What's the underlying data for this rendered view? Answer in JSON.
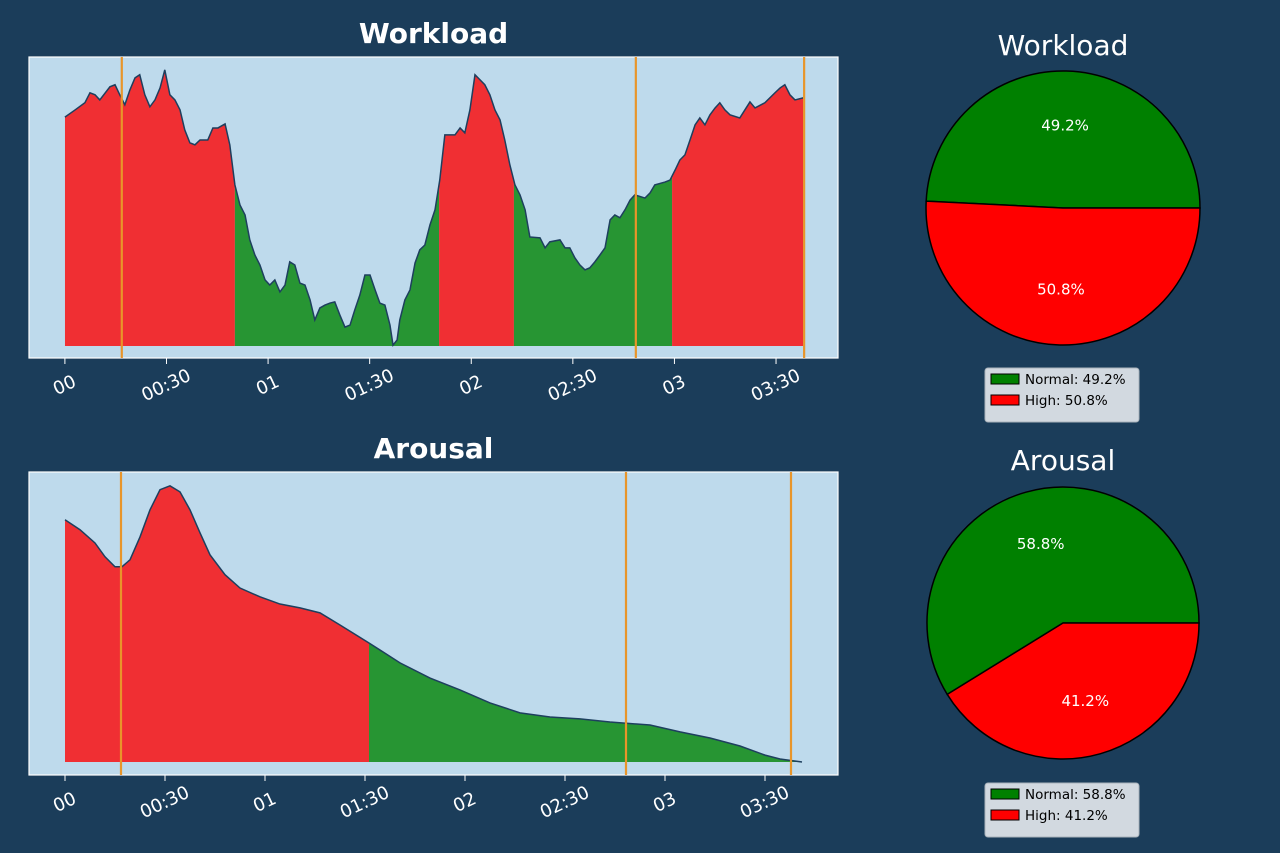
{
  "chart_data": [
    {
      "type": "area",
      "title": "Workload",
      "x": [
        0,
        3.0,
        5.9,
        7.4,
        8.9,
        10.3,
        13.3,
        14.8,
        16.2,
        17.7,
        19.2,
        20.7,
        22.1,
        23.6,
        25.1,
        26.6,
        28.1,
        29.5,
        31.0,
        32.5,
        34.0,
        35.4,
        36.9,
        38.4,
        39.9,
        42.2,
        43.7,
        45.2,
        47.3,
        48.7,
        50.2,
        51.7,
        53.2,
        54.6,
        56.1,
        57.6,
        59.1,
        60.5,
        62.0,
        63.5,
        65.0,
        66.4,
        67.9,
        69.4,
        70.9,
        72.4,
        73.8,
        75.3,
        76.8,
        78.3,
        79.7,
        81.2,
        82.7,
        84.2,
        85.6,
        87.1,
        88.6,
        90.1,
        91.6,
        93.0,
        94.5,
        96.0,
        96.9,
        98.1,
        98.9,
        100.4,
        101.9,
        103.4,
        104.8,
        106.3,
        107.8,
        109.3,
        110.7,
        112.2,
        115.2,
        116.7,
        118.1,
        119.6,
        121.1,
        122.6,
        124.0,
        125.5,
        127.0,
        128.5,
        129.9,
        131.4,
        132.9,
        134.4,
        135.9,
        137.3,
        140.3,
        141.8,
        143.2,
        146.2,
        147.7,
        149.1,
        150.6,
        152.1,
        153.6,
        155.0,
        156.5,
        158.0,
        159.5,
        161.0,
        162.4,
        163.9,
        165.4,
        166.9,
        168.3,
        171.3,
        172.8,
        174.2,
        177.2,
        178.7,
        180.2,
        181.6,
        183.1,
        184.6,
        186.1,
        187.5,
        189.0,
        190.5,
        192.0,
        193.4,
        194.9,
        196.4,
        199.3,
        200.8,
        202.3,
        203.8,
        206.7,
        209.7,
        211.2,
        212.6,
        214.1,
        215.6,
        218.0
      ],
      "values": [
        80,
        82.5,
        85,
        88.5,
        87.8,
        86,
        90.6,
        91.3,
        87.8,
        84.3,
        89.5,
        93.7,
        94.8,
        87.8,
        83.6,
        86,
        90.2,
        96.5,
        87.8,
        86,
        82.5,
        75.5,
        71,
        70.3,
        72,
        72,
        76.2,
        76.2,
        77.6,
        70.3,
        56.3,
        49.3,
        45.8,
        37.1,
        31.8,
        28.3,
        23.1,
        21.3,
        23.1,
        18.9,
        21.3,
        29.4,
        28.3,
        22,
        21.3,
        16.1,
        9.1,
        13.3,
        14.3,
        15,
        15.4,
        10.8,
        6.6,
        7.3,
        12.6,
        17.8,
        24.8,
        24.8,
        19.6,
        15,
        14.3,
        7.3,
        0.3,
        2.1,
        9.1,
        16.1,
        19.6,
        29,
        33.6,
        35.3,
        42.3,
        47.6,
        58,
        73.8,
        73.8,
        76.2,
        74.5,
        82.5,
        94.8,
        93,
        91.3,
        87.8,
        82.5,
        79,
        72,
        63.3,
        56.3,
        52.8,
        47.6,
        38.1,
        37.8,
        34.3,
        36.4,
        37.1,
        34.3,
        34.3,
        30.8,
        28.3,
        26.6,
        27.3,
        29.4,
        31.8,
        34.3,
        44.1,
        45.8,
        44.8,
        47.6,
        51,
        52.8,
        51.7,
        53.5,
        56.3,
        57.3,
        58,
        61.5,
        65,
        66.8,
        72,
        77.3,
        79.7,
        77.3,
        80.8,
        83.2,
        85,
        82.5,
        80.8,
        79.7,
        82.5,
        85.3,
        83.2,
        85,
        88.5,
        90.2,
        91.3,
        87.8,
        86,
        86.7
      ],
      "segments": [
        {
          "x0": 0,
          "x1": 50.2,
          "color": "#f02f33"
        },
        {
          "x0": 50.2,
          "x1": 110.5,
          "color": "#279533"
        },
        {
          "x0": 110.5,
          "x1": 132.6,
          "color": "#f02f33"
        },
        {
          "x0": 132.6,
          "x1": 179.3,
          "color": "#279533"
        },
        {
          "x0": 179.3,
          "x1": 218.0,
          "color": "#f02f33"
        }
      ],
      "vlines": [
        16.8,
        168.6,
        218.3
      ],
      "vline_color": "#e8952a",
      "line_color": "#1e3f5e",
      "xlim": [
        -10.6,
        228.3
      ],
      "ylim": [
        -4.2,
        101
      ],
      "xticks": [
        {
          "value": 0,
          "label": "00"
        },
        {
          "value": 30,
          "label": "00:30"
        },
        {
          "value": 60,
          "label": "01"
        },
        {
          "value": 90,
          "label": "01:30"
        },
        {
          "value": 120,
          "label": "02"
        },
        {
          "value": 150,
          "label": "02:30"
        },
        {
          "value": 180,
          "label": "03"
        },
        {
          "value": 210,
          "label": "03:30"
        }
      ]
    },
    {
      "type": "pie",
      "title": "Workload",
      "values": [
        49.2,
        50.8
      ],
      "value_labels": [
        "49.2%",
        "50.8%"
      ],
      "legend_labels": [
        "Normal: 49.2%",
        "High: 50.8%"
      ],
      "colors": [
        "#008000",
        "#ff0000"
      ]
    },
    {
      "type": "area",
      "title": "Arousal",
      "x": [
        0,
        4.5,
        9,
        12,
        15,
        17.1,
        19.5,
        22.5,
        25.5,
        28.5,
        31.5,
        34.5,
        37.5,
        40.5,
        43.5,
        48,
        52.5,
        58.5,
        64.5,
        70.5,
        76.5,
        82.5,
        91.2,
        100.5,
        109.5,
        118.5,
        127.5,
        136.5,
        145.5,
        154.5,
        163.5,
        175.5,
        184.5,
        193.5,
        202.5,
        210,
        214.5,
        221.1
      ],
      "values": [
        87.7,
        84.1,
        79.3,
        74.3,
        70.7,
        70.7,
        73.2,
        81.5,
        91.3,
        98.6,
        100,
        97.8,
        91.3,
        83,
        75,
        67.8,
        63,
        59.8,
        57.2,
        55.8,
        54,
        49.6,
        43.1,
        35.9,
        30.4,
        26.1,
        21.4,
        17.8,
        16.3,
        15.6,
        14.5,
        13.4,
        10.9,
        8.7,
        5.8,
        2.5,
        1.1,
        0
      ],
      "segments": [
        {
          "x0": 0,
          "x1": 91.2,
          "color": "#f02f33"
        },
        {
          "x0": 91.2,
          "x1": 221.1,
          "color": "#279533"
        }
      ],
      "vlines": [
        16.8,
        168.3,
        217.8
      ],
      "vline_color": "#e8952a",
      "line_color": "#1e3f5e",
      "xlim": [
        -10.8,
        231.9
      ],
      "ylim": [
        -4.7,
        105
      ],
      "xticks": [
        {
          "value": 0,
          "label": "00"
        },
        {
          "value": 30,
          "label": "00:30"
        },
        {
          "value": 60,
          "label": "01"
        },
        {
          "value": 90,
          "label": "01:30"
        },
        {
          "value": 120,
          "label": "02"
        },
        {
          "value": 150,
          "label": "02:30"
        },
        {
          "value": 180,
          "label": "03"
        },
        {
          "value": 210,
          "label": "03:30"
        }
      ]
    },
    {
      "type": "pie",
      "title": "Arousal",
      "values": [
        58.8,
        41.2
      ],
      "value_labels": [
        "58.8%",
        "41.2%"
      ],
      "legend_labels": [
        "Normal: 58.8%",
        "High: 41.2%"
      ],
      "colors": [
        "#008000",
        "#ff0000"
      ]
    }
  ]
}
